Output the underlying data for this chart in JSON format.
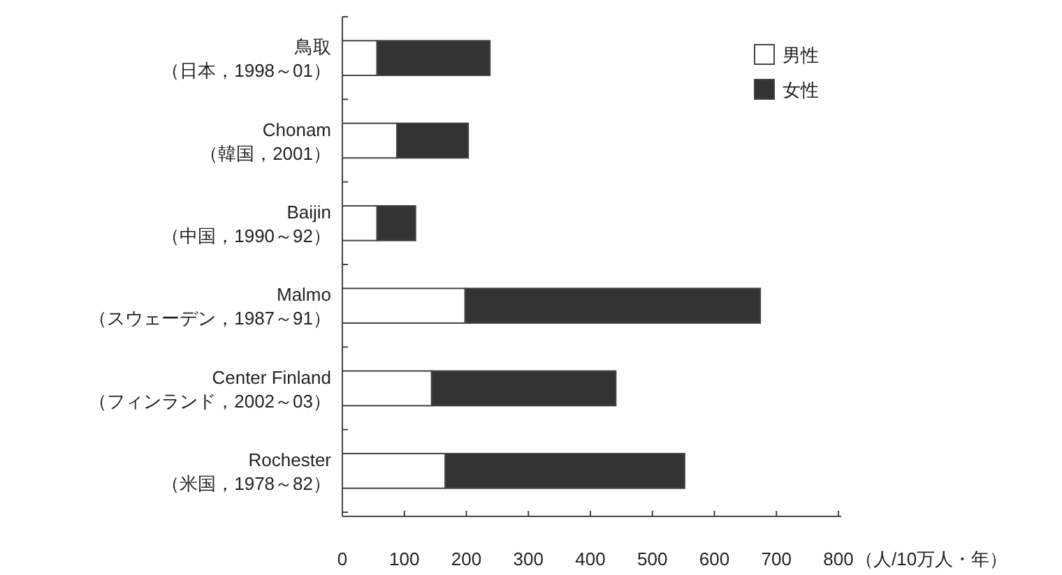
{
  "chart_data": {
    "type": "bar",
    "orientation": "horizontal",
    "stacked": true,
    "categories": [
      "鳥取（日本，1998～01）",
      "Chonam（韓国，2001）",
      "Baijin（中国，1990～92）",
      "Malmo（スウェーデン，1987～91）",
      "Center Finland（フィンランド，2002～03）",
      "Rochester（米国，1978～82）"
    ],
    "series": [
      {
        "name": "男性",
        "color": "#ffffff",
        "values": [
          56,
          88,
          56,
          198,
          144,
          166
        ]
      },
      {
        "name": "女性",
        "color": "#333333",
        "values": [
          182,
          115,
          62,
          476,
          297,
          386
        ]
      }
    ],
    "xlim": [
      0,
      800
    ],
    "xticks": [
      0,
      100,
      200,
      300,
      400,
      500,
      600,
      700,
      800
    ],
    "xlabel": "（人/10万人・年）",
    "legend": "top right"
  }
}
